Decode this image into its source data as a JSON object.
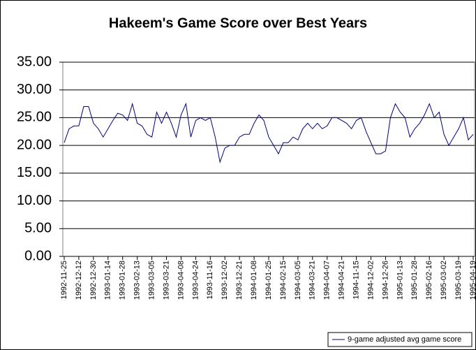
{
  "chart_data": {
    "type": "line",
    "title": "Hakeem's Game Score over Best Years",
    "categories": [
      "1992-11-25",
      null,
      null,
      "1992-12-12",
      null,
      null,
      "1992-12-30",
      null,
      null,
      "1993-01-14",
      null,
      null,
      "1993-01-28",
      null,
      null,
      "1993-02-13",
      null,
      null,
      "1993-03-05",
      null,
      null,
      "1993-03-21",
      null,
      null,
      "1993-04-08",
      null,
      null,
      "1993-04-24",
      null,
      null,
      "1993-11-16",
      null,
      null,
      "1993-12-02",
      null,
      null,
      "1993-12-21",
      null,
      null,
      "1994-01-08",
      null,
      null,
      "1994-01-25",
      null,
      null,
      "1994-02-15",
      null,
      null,
      "1994-03-05",
      null,
      null,
      "1994-03-21",
      null,
      null,
      "1994-04-07",
      null,
      null,
      "1994-04-21",
      null,
      null,
      "1994-11-15",
      null,
      null,
      "1994-12-02",
      null,
      null,
      "1994-12-26",
      null,
      null,
      "1995-01-13",
      null,
      null,
      "1995-01-28",
      null,
      null,
      "1995-02-16",
      null,
      null,
      "1995-03-02",
      null,
      null,
      "1995-03-19",
      null,
      null,
      "1995-04-19"
    ],
    "series": [
      {
        "name": "9-game adjusted avg game score",
        "color": "#000080",
        "values": [
          20.5,
          23,
          23.5,
          23.5,
          27,
          27,
          24,
          23,
          21.5,
          23,
          24.5,
          25.8,
          25.5,
          24.5,
          27.5,
          24,
          23.5,
          22,
          21.5,
          26,
          24,
          26,
          24,
          21.5,
          25.5,
          27.5,
          21.5,
          24.5,
          25,
          24.5,
          25,
          21.5,
          17,
          19.5,
          20,
          20,
          21.5,
          22,
          22,
          24,
          25.5,
          24.5,
          21.5,
          20,
          18.5,
          20.5,
          20.5,
          21.5,
          21,
          23,
          24,
          23,
          24,
          23,
          23.5,
          25,
          25,
          24.5,
          24,
          23,
          24.5,
          25,
          22.5,
          20.5,
          18.5,
          18.5,
          19,
          25,
          27.5,
          26,
          25,
          21.5,
          23,
          24,
          25.5,
          27.5,
          25,
          26,
          22,
          20,
          21.5,
          23,
          25,
          21,
          22
        ]
      }
    ],
    "ylim": [
      0,
      35
    ],
    "yticks": [
      {
        "value": 0,
        "label": "0.00"
      },
      {
        "value": 5,
        "label": "5.00"
      },
      {
        "value": 10,
        "label": "10.00"
      },
      {
        "value": 15,
        "label": "15.00"
      },
      {
        "value": 20,
        "label": "20.00"
      },
      {
        "value": 25,
        "label": "25.00"
      },
      {
        "value": 30,
        "label": "30.00"
      },
      {
        "value": 35,
        "label": "35.00"
      }
    ],
    "grid": true,
    "legend": "bottom-right"
  }
}
